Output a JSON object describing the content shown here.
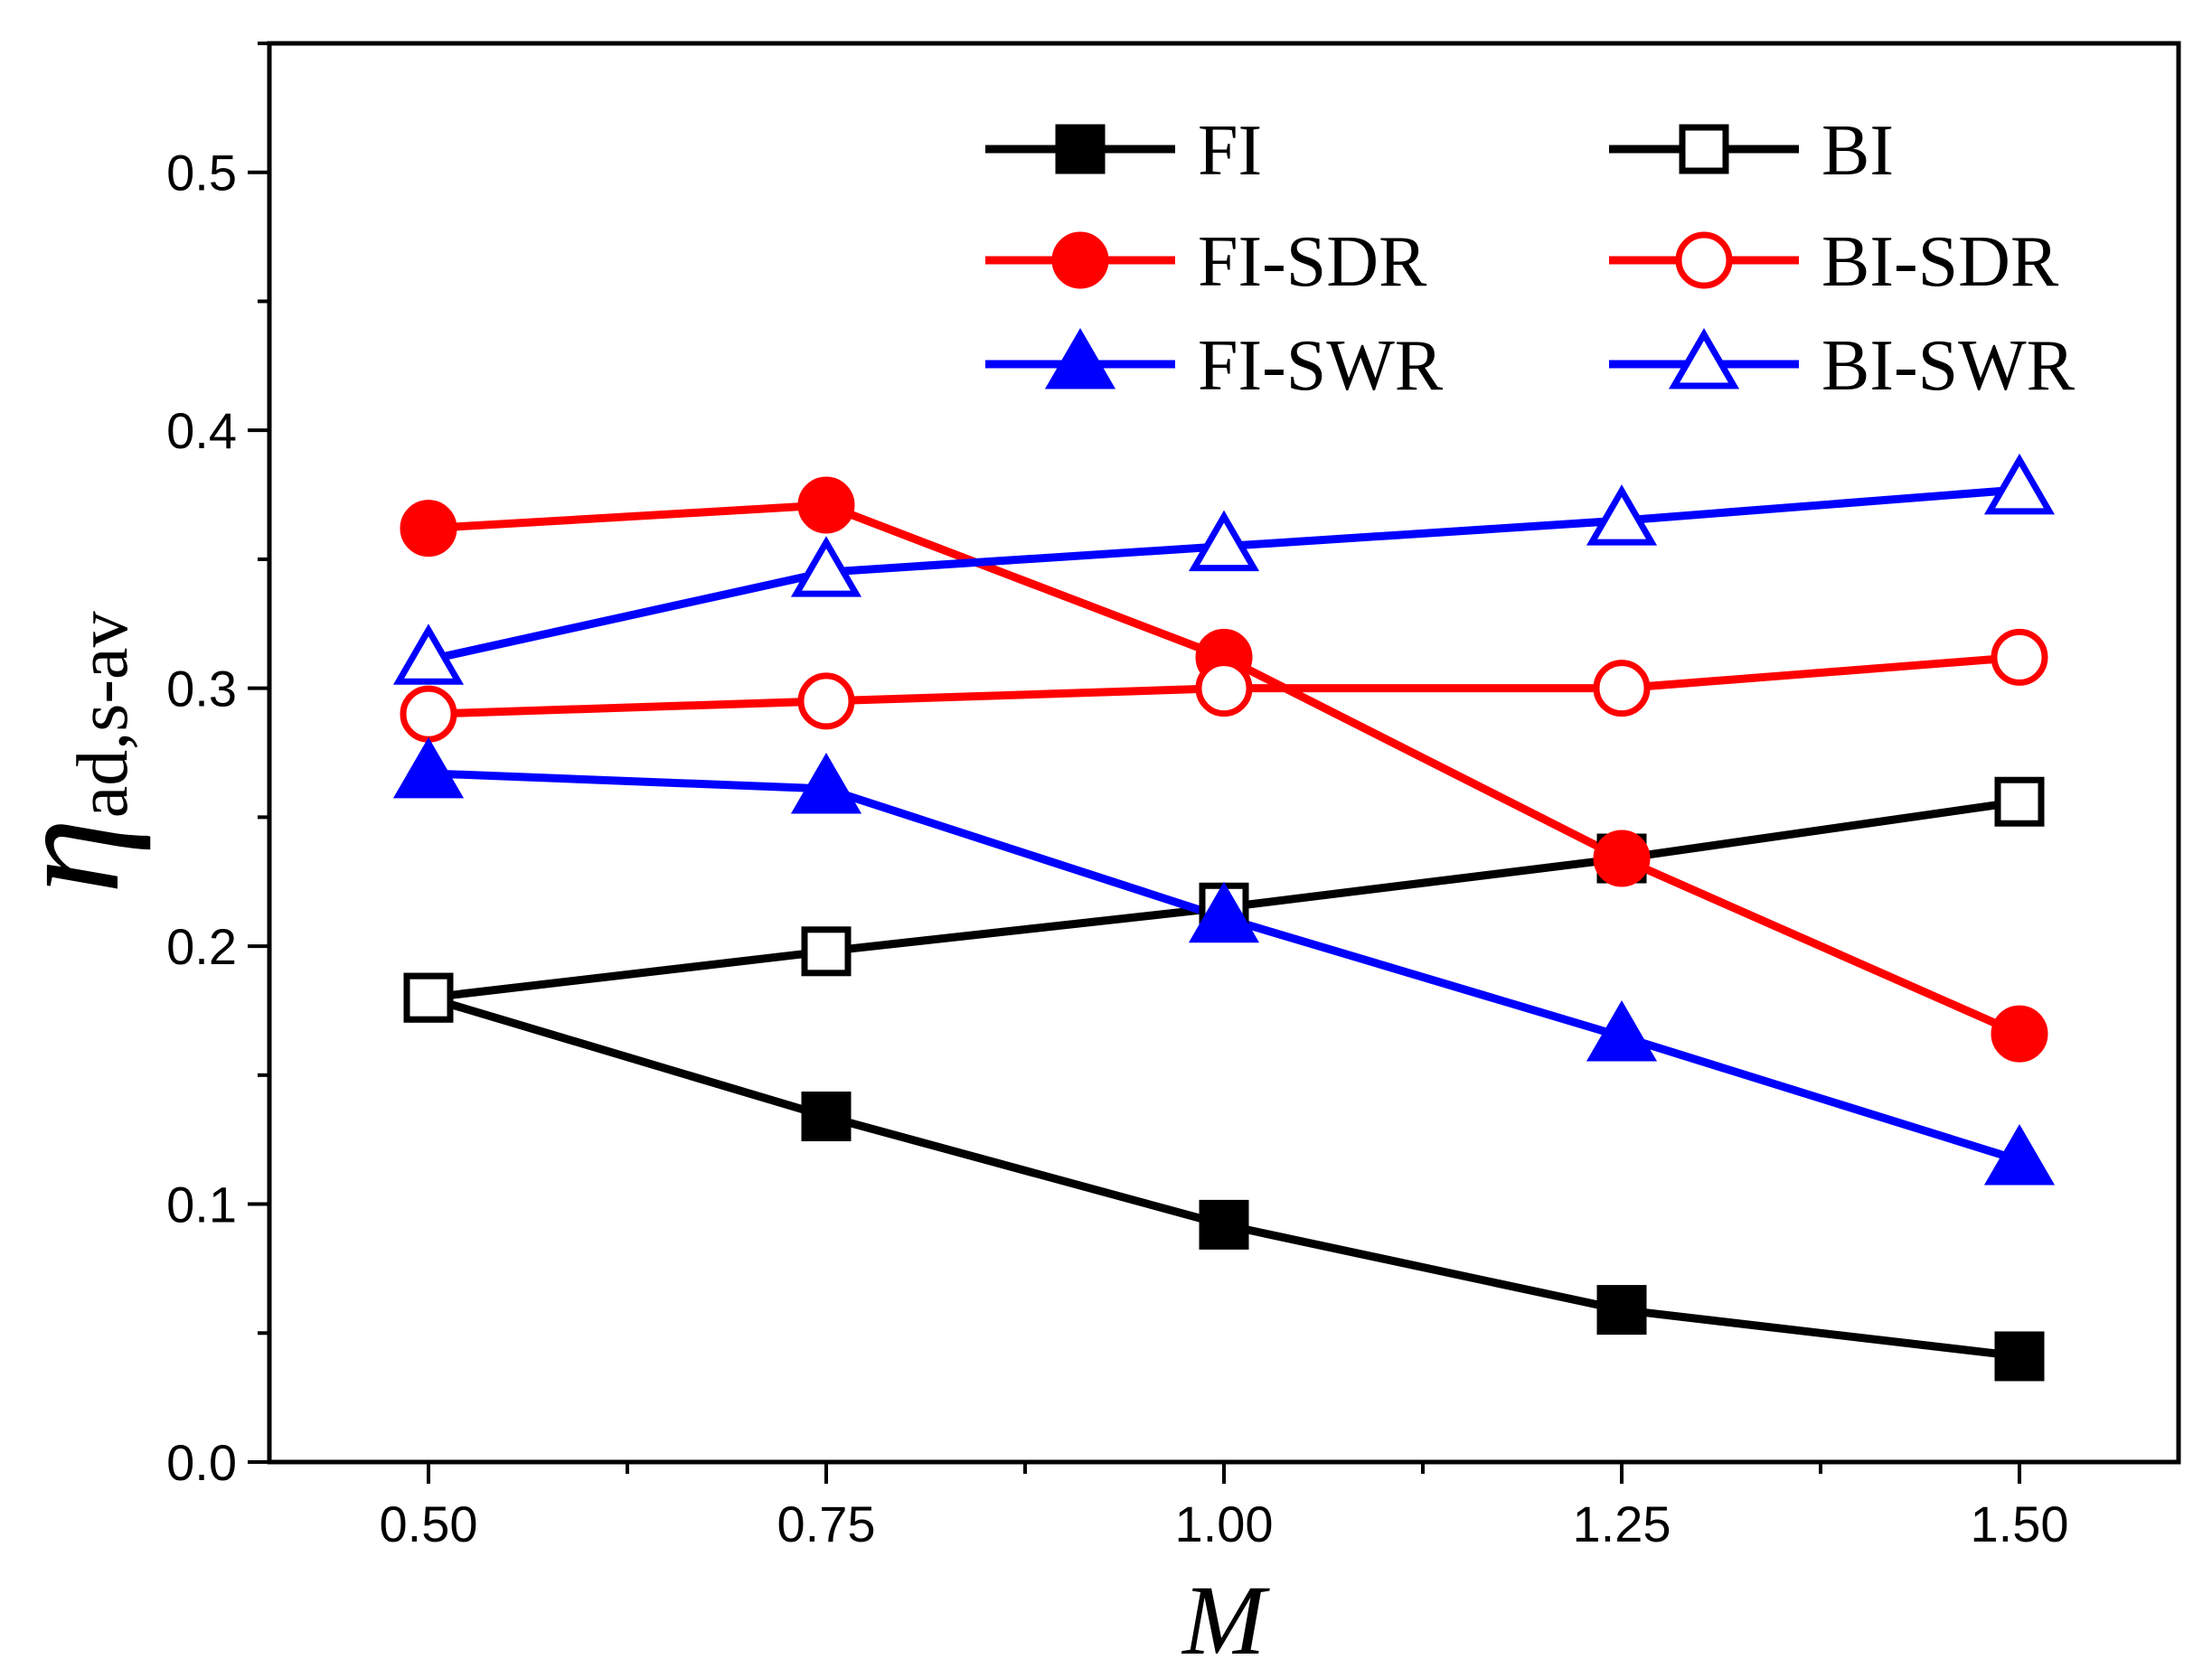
{
  "chart_data": {
    "type": "line",
    "title": "",
    "xlabel": "M",
    "ylabel_symbol": "η",
    "ylabel_subscript": "ad,s-av",
    "xlim": [
      0.4,
      1.6
    ],
    "ylim": [
      0.0,
      0.55
    ],
    "xticks": [
      0.5,
      0.75,
      1.0,
      1.25,
      1.5
    ],
    "xtick_labels": [
      "0.50",
      "0.75",
      "1.00",
      "1.25",
      "1.50"
    ],
    "yticks": [
      0.0,
      0.1,
      0.2,
      0.3,
      0.4,
      0.5
    ],
    "ytick_labels": [
      "0.0",
      "0.1",
      "0.2",
      "0.3",
      "0.4",
      "0.5"
    ],
    "grid": false,
    "legend_position": "top-right",
    "x": [
      0.5,
      0.75,
      1.0,
      1.25,
      1.5
    ],
    "series": [
      {
        "name": "FI",
        "color": "#000000",
        "marker": "square",
        "filled": true,
        "values": [
          0.18,
          0.134,
          0.092,
          0.059,
          0.041
        ]
      },
      {
        "name": "BI",
        "color": "#000000",
        "marker": "square",
        "filled": false,
        "values": [
          0.18,
          0.198,
          0.215,
          0.234,
          0.256
        ]
      },
      {
        "name": "FI-SDR",
        "color": "#ff0000",
        "marker": "circle",
        "filled": true,
        "values": [
          0.362,
          0.371,
          0.312,
          0.234,
          0.166
        ]
      },
      {
        "name": "BI-SDR",
        "color": "#ff0000",
        "marker": "circle",
        "filled": false,
        "values": [
          0.29,
          0.295,
          0.3,
          0.3,
          0.312
        ]
      },
      {
        "name": "FI-SWR",
        "color": "#0000ff",
        "marker": "triangle",
        "filled": true,
        "values": [
          0.267,
          0.261,
          0.211,
          0.165,
          0.117
        ]
      },
      {
        "name": "BI-SWR",
        "color": "#0000ff",
        "marker": "triangle",
        "filled": false,
        "values": [
          0.311,
          0.345,
          0.355,
          0.365,
          0.377
        ]
      }
    ]
  }
}
